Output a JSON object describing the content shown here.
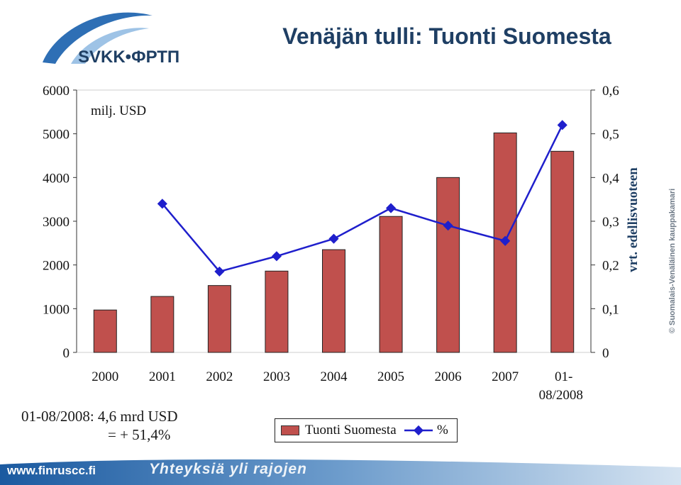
{
  "logo": {
    "text": "SVKK•ФРТП"
  },
  "slide": {
    "title": "Venäjän tulli: Tuonti Suomesta",
    "note_line1": "01-08/2008: 4,6 mrd USD",
    "note_line2": "= + 51,4%",
    "copyright": "© Suomalais-Venäläinen kauppakamari",
    "footer_url": "www.finruscc.fi",
    "footer_slogan": "Yhteyksiä yli rajojen"
  },
  "colors": {
    "bar": "#c0504d",
    "line": "#1f1fcc",
    "title": "#1f3f64",
    "footer": "#1f5d9e"
  },
  "chart_data": {
    "type": "bar",
    "categories": [
      "2000",
      "2001",
      "2002",
      "2003",
      "2004",
      "2005",
      "2006",
      "2007",
      "01-08/2008"
    ],
    "unit_label": "milj. USD",
    "y2label": "vrt. edellisvuoteen",
    "ylim": [
      0,
      6000
    ],
    "yticks": [
      "0",
      "1000",
      "2000",
      "3000",
      "4000",
      "5000",
      "6000"
    ],
    "y2lim": [
      0,
      0.6
    ],
    "y2ticks": [
      "0",
      "0,1",
      "0,2",
      "0,3",
      "0,4",
      "0,5",
      "0,6"
    ],
    "legend_position": "bottom",
    "series": [
      {
        "name": "Tuonti Suomesta",
        "type": "bar",
        "axis": "left",
        "values": [
          970,
          1280,
          1530,
          1860,
          2350,
          3110,
          4000,
          5020,
          4600
        ]
      },
      {
        "name": "%",
        "type": "line",
        "axis": "right",
        "values": [
          null,
          0.34,
          0.185,
          0.22,
          0.26,
          0.33,
          0.29,
          0.255,
          0.52
        ]
      }
    ]
  }
}
